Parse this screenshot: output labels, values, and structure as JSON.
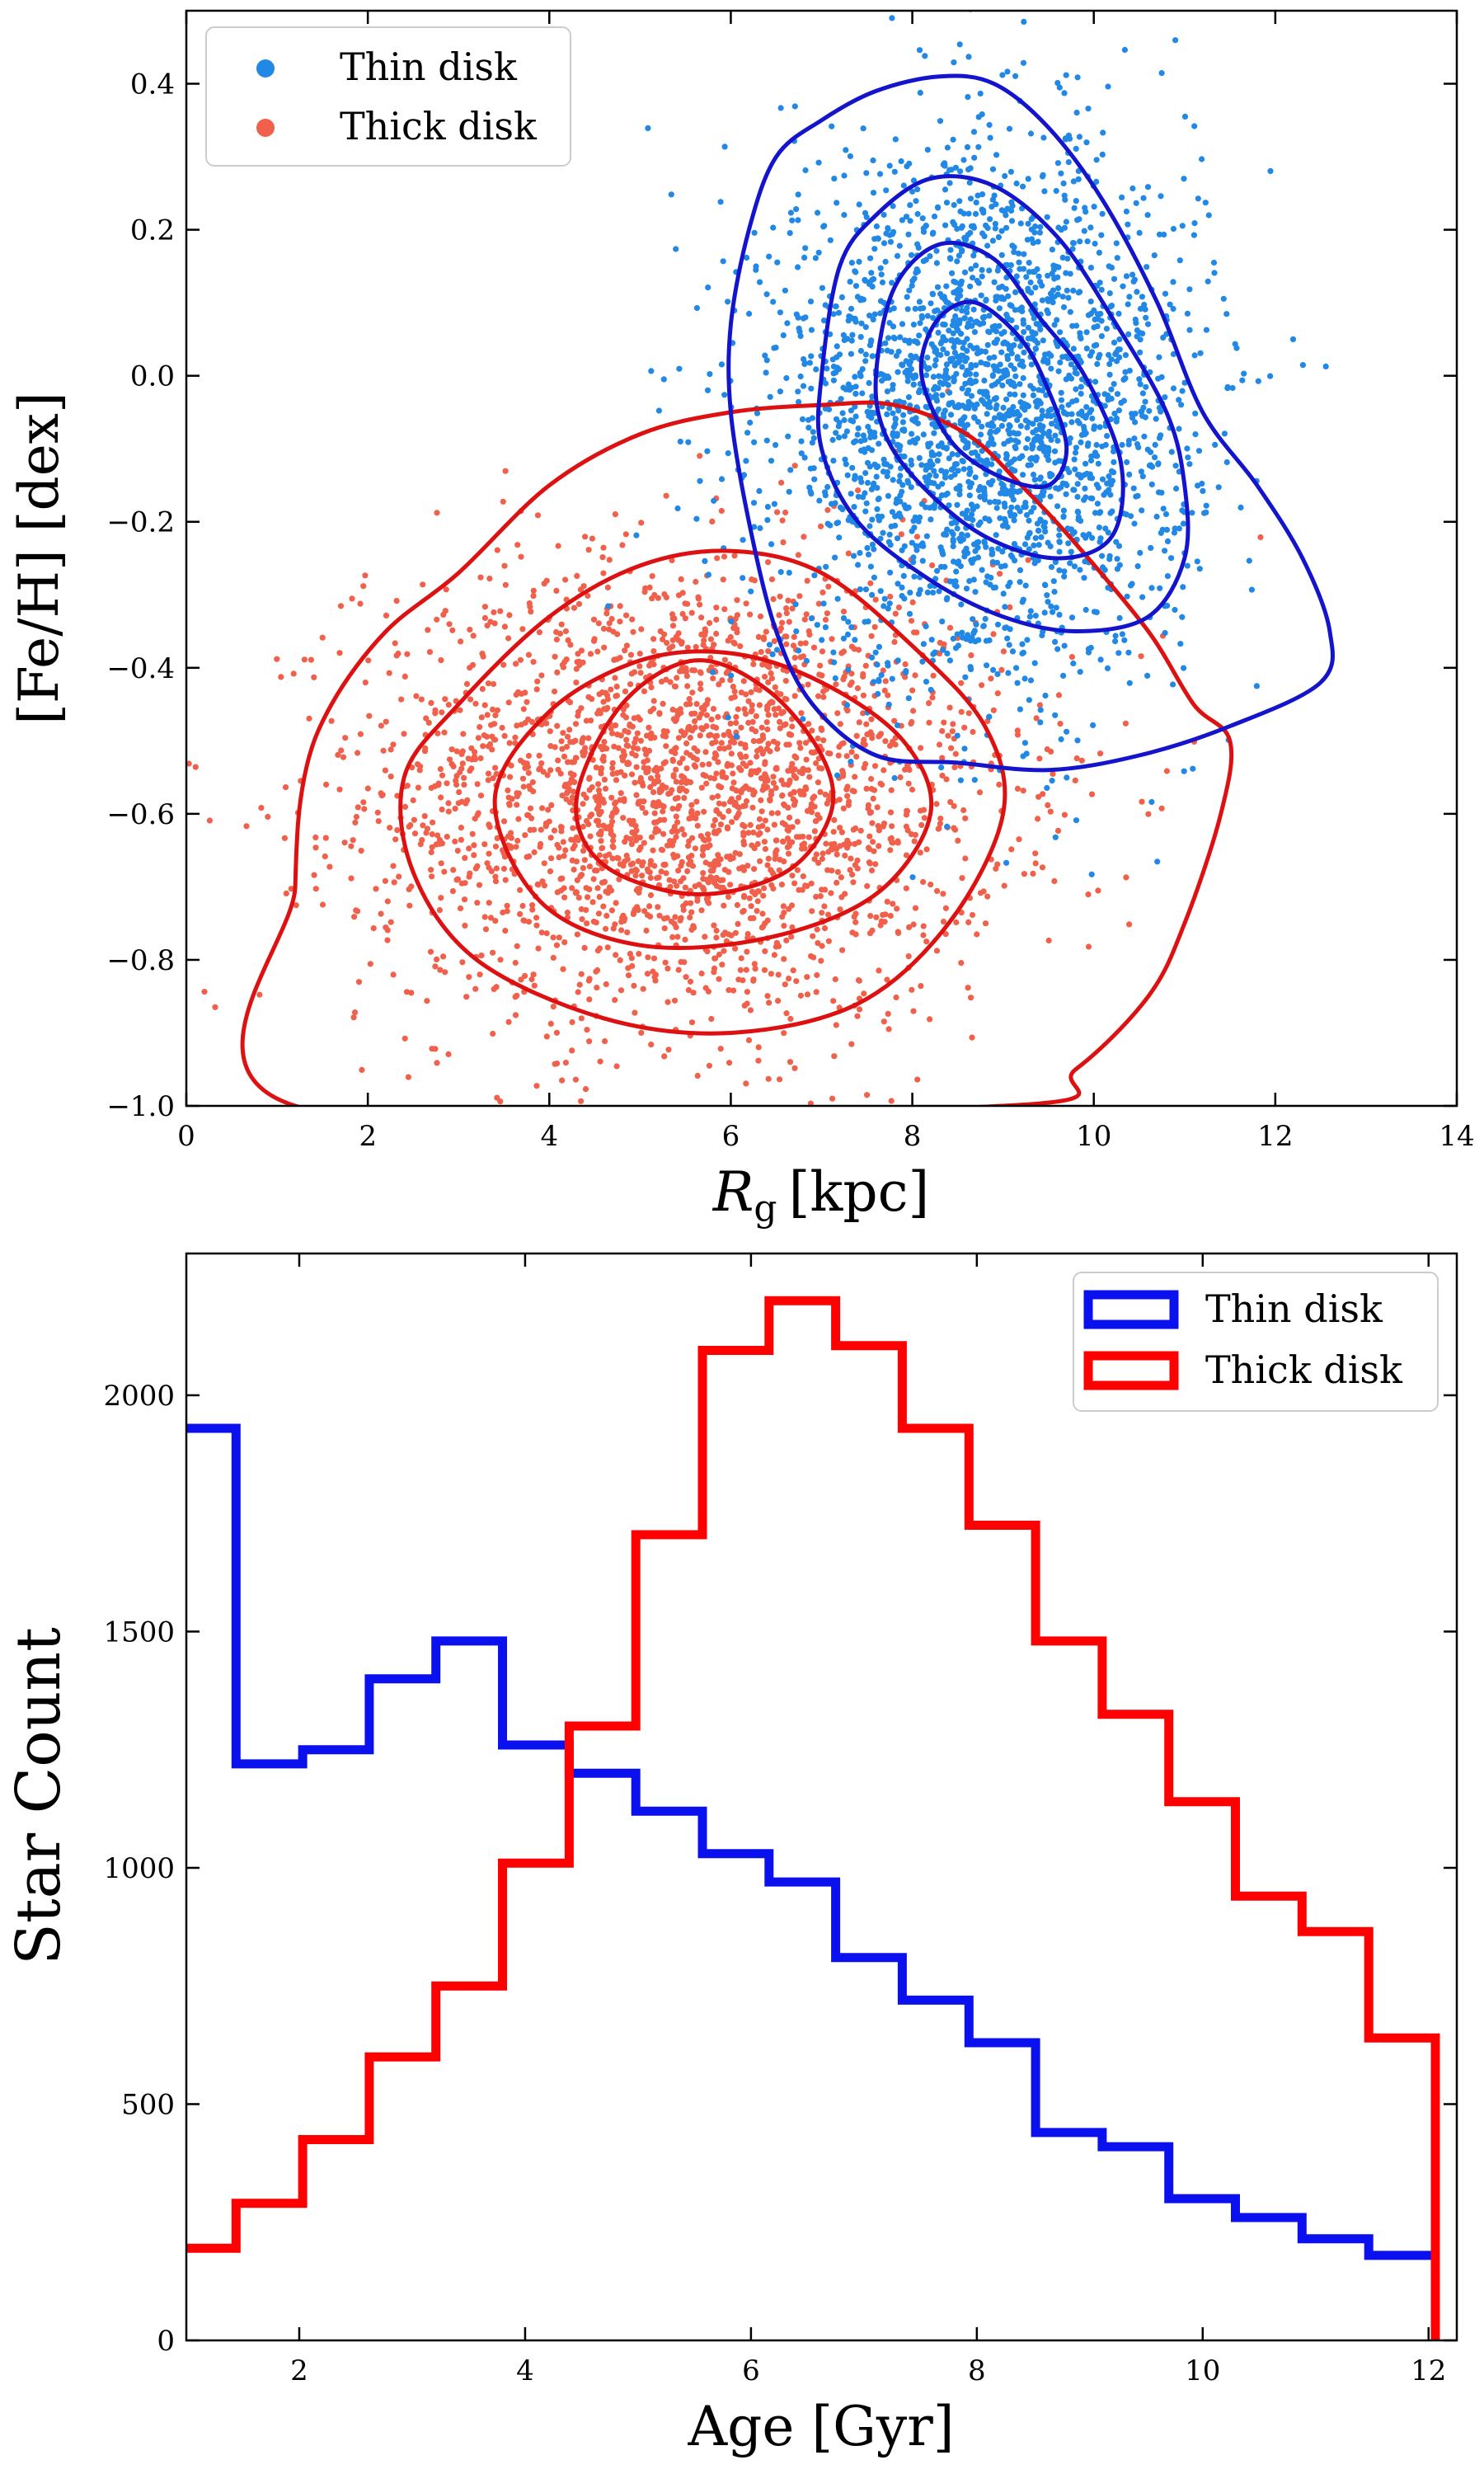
{
  "chart_data": [
    {
      "type": "scatter",
      "title": "",
      "xlabel_main": "R",
      "xlabel_sub": "g",
      "xlabel_unit": "[kpc]",
      "ylabel": "[Fe/H] [dex]",
      "xlim": [
        0,
        14
      ],
      "ylim": [
        -1.0,
        0.5
      ],
      "xticks": [
        0,
        2,
        4,
        6,
        8,
        10,
        12,
        14
      ],
      "yticks": [
        -1.0,
        -0.8,
        -0.6,
        -0.4,
        -0.2,
        0.0,
        0.2,
        0.4
      ],
      "xtick_labels": [
        "0",
        "2",
        "4",
        "6",
        "8",
        "10",
        "12",
        "14"
      ],
      "ytick_labels": [
        "−1.0",
        "−0.8",
        "−0.6",
        "−0.4",
        "−0.2",
        "0.0",
        "0.2",
        "0.4"
      ],
      "legend_position": "top-left",
      "series": [
        {
          "name": "Thick disk",
          "color": "#f0604a",
          "contour_color": "#dd1111",
          "center": [
            5.5,
            -0.57
          ],
          "spread": [
            1.75,
            0.16
          ],
          "points": 2600,
          "contours": [
            [
              [
                1.2,
                -1.0
              ],
              [
                1.2,
                -0.7
              ],
              [
                1.3,
                -0.55
              ],
              [
                1.6,
                -0.45
              ],
              [
                2.2,
                -0.35
              ],
              [
                3.0,
                -0.27
              ],
              [
                4.0,
                -0.15
              ],
              [
                5.0,
                -0.08
              ],
              [
                6.0,
                -0.05
              ],
              [
                7.0,
                -0.04
              ],
              [
                7.8,
                -0.04
              ],
              [
                8.6,
                -0.08
              ],
              [
                9.2,
                -0.15
              ],
              [
                9.8,
                -0.23
              ],
              [
                10.6,
                -0.35
              ],
              [
                11.1,
                -0.45
              ],
              [
                11.5,
                -0.5
              ],
              [
                11.4,
                -0.6
              ],
              [
                11.0,
                -0.75
              ],
              [
                10.6,
                -0.85
              ],
              [
                9.8,
                -0.95
              ],
              [
                9.0,
                -1.0
              ]
            ],
            [
              [
                2.4,
                -0.55
              ],
              [
                3.0,
                -0.45
              ],
              [
                4.0,
                -0.33
              ],
              [
                5.0,
                -0.26
              ],
              [
                6.0,
                -0.24
              ],
              [
                7.0,
                -0.27
              ],
              [
                8.0,
                -0.37
              ],
              [
                8.8,
                -0.48
              ],
              [
                9.0,
                -0.6
              ],
              [
                8.4,
                -0.75
              ],
              [
                7.4,
                -0.86
              ],
              [
                6.0,
                -0.9
              ],
              [
                4.6,
                -0.88
              ],
              [
                3.2,
                -0.8
              ],
              [
                2.5,
                -0.68
              ]
            ],
            [
              [
                3.4,
                -0.58
              ],
              [
                4.0,
                -0.46
              ],
              [
                5.0,
                -0.39
              ],
              [
                6.0,
                -0.38
              ],
              [
                7.0,
                -0.42
              ],
              [
                7.9,
                -0.5
              ],
              [
                8.2,
                -0.6
              ],
              [
                7.6,
                -0.71
              ],
              [
                6.4,
                -0.77
              ],
              [
                5.0,
                -0.78
              ],
              [
                3.9,
                -0.72
              ]
            ],
            [
              [
                4.3,
                -0.58
              ],
              [
                4.8,
                -0.45
              ],
              [
                5.6,
                -0.39
              ],
              [
                6.4,
                -0.43
              ],
              [
                7.0,
                -0.52
              ],
              [
                7.1,
                -0.6
              ],
              [
                6.6,
                -0.68
              ],
              [
                5.6,
                -0.71
              ],
              [
                4.6,
                -0.67
              ]
            ]
          ]
        },
        {
          "name": "Thin disk",
          "color": "#2188e6",
          "contour_color": "#1414cc",
          "center": [
            8.8,
            -0.05
          ],
          "spread": [
            1.15,
            0.18
          ],
          "points": 2600,
          "contours": [
            [
              [
                6.0,
                0.07
              ],
              [
                6.2,
                0.2
              ],
              [
                6.5,
                0.3
              ],
              [
                7.0,
                0.35
              ],
              [
                7.6,
                0.39
              ],
              [
                8.3,
                0.41
              ],
              [
                8.9,
                0.4
              ],
              [
                9.5,
                0.34
              ],
              [
                10.1,
                0.24
              ],
              [
                10.7,
                0.1
              ],
              [
                11.2,
                -0.05
              ],
              [
                11.8,
                -0.15
              ],
              [
                12.3,
                -0.25
              ],
              [
                12.6,
                -0.35
              ],
              [
                12.5,
                -0.42
              ],
              [
                11.5,
                -0.48
              ],
              [
                10.5,
                -0.52
              ],
              [
                9.5,
                -0.54
              ],
              [
                8.5,
                -0.53
              ],
              [
                7.6,
                -0.52
              ],
              [
                6.9,
                -0.45
              ],
              [
                6.5,
                -0.35
              ],
              [
                6.2,
                -0.2
              ],
              [
                6.0,
                -0.05
              ]
            ],
            [
              [
                7.0,
                0.0
              ],
              [
                7.2,
                0.15
              ],
              [
                7.6,
                0.22
              ],
              [
                8.2,
                0.27
              ],
              [
                8.9,
                0.26
              ],
              [
                9.6,
                0.19
              ],
              [
                10.2,
                0.08
              ],
              [
                10.8,
                -0.05
              ],
              [
                11.0,
                -0.15
              ],
              [
                11.0,
                -0.25
              ],
              [
                10.6,
                -0.33
              ],
              [
                9.8,
                -0.35
              ],
              [
                9.0,
                -0.33
              ],
              [
                8.2,
                -0.28
              ],
              [
                7.4,
                -0.2
              ],
              [
                7.0,
                -0.1
              ]
            ],
            [
              [
                7.6,
                0.0
              ],
              [
                7.8,
                0.12
              ],
              [
                8.3,
                0.18
              ],
              [
                8.9,
                0.16
              ],
              [
                9.4,
                0.08
              ],
              [
                9.9,
                0.0
              ],
              [
                10.3,
                -0.12
              ],
              [
                10.2,
                -0.22
              ],
              [
                9.6,
                -0.25
              ],
              [
                8.8,
                -0.22
              ],
              [
                8.1,
                -0.15
              ],
              [
                7.7,
                -0.08
              ]
            ],
            [
              [
                8.1,
                0.02
              ],
              [
                8.3,
                0.08
              ],
              [
                8.7,
                0.1
              ],
              [
                9.2,
                0.05
              ],
              [
                9.5,
                -0.02
              ],
              [
                9.7,
                -0.1
              ],
              [
                9.5,
                -0.15
              ],
              [
                9.0,
                -0.14
              ],
              [
                8.5,
                -0.1
              ],
              [
                8.2,
                -0.04
              ]
            ]
          ]
        }
      ]
    },
    {
      "type": "histogram",
      "title": "",
      "xlabel": "Age [Gyr]",
      "ylabel": "Star Count",
      "xlim": [
        1.0,
        12.25
      ],
      "ylim": [
        0,
        2300
      ],
      "xticks": [
        2,
        4,
        6,
        8,
        10,
        12
      ],
      "yticks": [
        0,
        500,
        1000,
        1500,
        2000
      ],
      "xtick_labels": [
        "2",
        "4",
        "6",
        "8",
        "10",
        "12"
      ],
      "ytick_labels": [
        "0",
        "500",
        "1000",
        "1500",
        "2000"
      ],
      "bin_edges": [
        0.85,
        1.44,
        2.03,
        2.62,
        3.21,
        3.8,
        4.39,
        4.98,
        5.57,
        6.16,
        6.75,
        7.34,
        7.93,
        8.52,
        9.11,
        9.7,
        10.29,
        10.88,
        11.47,
        12.06
      ],
      "legend_position": "top-right",
      "series": [
        {
          "name": "Thin disk",
          "color": "#0a10ee",
          "values": [
            1930,
            1220,
            1250,
            1400,
            1480,
            1260,
            1200,
            1120,
            1030,
            970,
            810,
            720,
            630,
            440,
            410,
            300,
            260,
            215,
            180
          ]
        },
        {
          "name": "Thick disk",
          "color": "#ff0000",
          "values": [
            195,
            290,
            425,
            600,
            750,
            1010,
            1300,
            1705,
            2095,
            2200,
            2105,
            1930,
            1725,
            1480,
            1325,
            1140,
            940,
            865,
            640
          ]
        }
      ]
    }
  ]
}
